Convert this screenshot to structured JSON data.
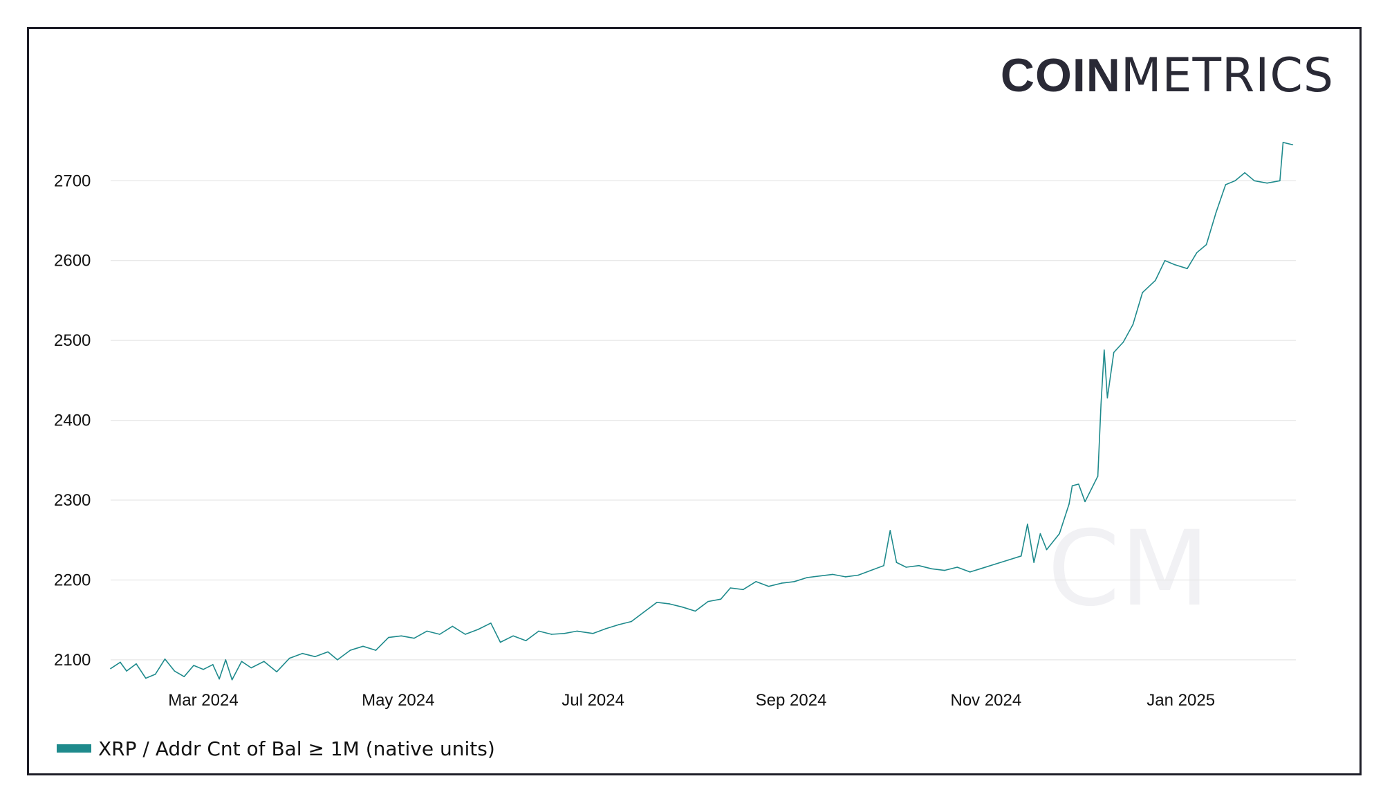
{
  "logo": {
    "bold": "COIN",
    "light": "METRICS",
    "watermark": "CM"
  },
  "colors": {
    "series": "#1e8a8c",
    "grid": "#e6e6e6",
    "frame": "#1d1d27",
    "logo": "#2a2a36",
    "watermark": "#f1f1f4"
  },
  "chart_data": {
    "type": "line",
    "title": "",
    "xlabel": "",
    "ylabel": "",
    "x_range": [
      "2024-02-01",
      "2025-02-06"
    ],
    "ylim": [
      2080,
      2760
    ],
    "grid": true,
    "legend_position": "bottom-left",
    "y_ticks": [
      {
        "value": 2100,
        "label": "2100"
      },
      {
        "value": 2200,
        "label": "2200"
      },
      {
        "value": 2300,
        "label": "2300"
      },
      {
        "value": 2400,
        "label": "2400"
      },
      {
        "value": 2500,
        "label": "2500"
      },
      {
        "value": 2600,
        "label": "2600"
      },
      {
        "value": 2700,
        "label": "2700"
      }
    ],
    "x_ticks": [
      {
        "date": "2024-03-01",
        "label": "Mar 2024"
      },
      {
        "date": "2024-05-01",
        "label": "May 2024"
      },
      {
        "date": "2024-07-01",
        "label": "Jul 2024"
      },
      {
        "date": "2024-09-01",
        "label": "Sep 2024"
      },
      {
        "date": "2024-11-01",
        "label": "Nov 2024"
      },
      {
        "date": "2025-01-01",
        "label": "Jan 2025"
      }
    ],
    "series": [
      {
        "name": "XRP / Addr Cnt of Bal ≥ 1M (native units)",
        "color": "#1e8a8c",
        "points": [
          [
            "2024-02-01",
            2089
          ],
          [
            "2024-02-04",
            2097
          ],
          [
            "2024-02-06",
            2086
          ],
          [
            "2024-02-09",
            2095
          ],
          [
            "2024-02-12",
            2077
          ],
          [
            "2024-02-15",
            2082
          ],
          [
            "2024-02-18",
            2101
          ],
          [
            "2024-02-21",
            2086
          ],
          [
            "2024-02-24",
            2079
          ],
          [
            "2024-02-27",
            2093
          ],
          [
            "2024-03-01",
            2088
          ],
          [
            "2024-03-04",
            2094
          ],
          [
            "2024-03-06",
            2076
          ],
          [
            "2024-03-08",
            2100
          ],
          [
            "2024-03-10",
            2075
          ],
          [
            "2024-03-13",
            2098
          ],
          [
            "2024-03-16",
            2090
          ],
          [
            "2024-03-20",
            2098
          ],
          [
            "2024-03-24",
            2085
          ],
          [
            "2024-03-28",
            2102
          ],
          [
            "2024-04-01",
            2108
          ],
          [
            "2024-04-05",
            2104
          ],
          [
            "2024-04-09",
            2110
          ],
          [
            "2024-04-12",
            2100
          ],
          [
            "2024-04-16",
            2112
          ],
          [
            "2024-04-20",
            2117
          ],
          [
            "2024-04-24",
            2112
          ],
          [
            "2024-04-28",
            2128
          ],
          [
            "2024-05-02",
            2130
          ],
          [
            "2024-05-06",
            2127
          ],
          [
            "2024-05-10",
            2136
          ],
          [
            "2024-05-14",
            2132
          ],
          [
            "2024-05-18",
            2142
          ],
          [
            "2024-05-22",
            2132
          ],
          [
            "2024-05-26",
            2138
          ],
          [
            "2024-05-30",
            2146
          ],
          [
            "2024-06-02",
            2122
          ],
          [
            "2024-06-06",
            2130
          ],
          [
            "2024-06-10",
            2124
          ],
          [
            "2024-06-14",
            2136
          ],
          [
            "2024-06-18",
            2132
          ],
          [
            "2024-06-22",
            2133
          ],
          [
            "2024-06-26",
            2136
          ],
          [
            "2024-07-01",
            2133
          ],
          [
            "2024-07-05",
            2139
          ],
          [
            "2024-07-09",
            2144
          ],
          [
            "2024-07-13",
            2148
          ],
          [
            "2024-07-17",
            2160
          ],
          [
            "2024-07-21",
            2172
          ],
          [
            "2024-07-25",
            2170
          ],
          [
            "2024-07-29",
            2166
          ],
          [
            "2024-08-02",
            2161
          ],
          [
            "2024-08-06",
            2173
          ],
          [
            "2024-08-10",
            2176
          ],
          [
            "2024-08-13",
            2190
          ],
          [
            "2024-08-17",
            2188
          ],
          [
            "2024-08-21",
            2198
          ],
          [
            "2024-08-25",
            2192
          ],
          [
            "2024-08-29",
            2196
          ],
          [
            "2024-09-02",
            2198
          ],
          [
            "2024-09-06",
            2203
          ],
          [
            "2024-09-10",
            2205
          ],
          [
            "2024-09-14",
            2207
          ],
          [
            "2024-09-18",
            2204
          ],
          [
            "2024-09-22",
            2206
          ],
          [
            "2024-09-26",
            2212
          ],
          [
            "2024-09-30",
            2218
          ],
          [
            "2024-10-02",
            2262
          ],
          [
            "2024-10-04",
            2222
          ],
          [
            "2024-10-07",
            2216
          ],
          [
            "2024-10-11",
            2218
          ],
          [
            "2024-10-15",
            2214
          ],
          [
            "2024-10-19",
            2212
          ],
          [
            "2024-10-23",
            2216
          ],
          [
            "2024-10-27",
            2210
          ],
          [
            "2024-10-31",
            2215
          ],
          [
            "2024-11-04",
            2220
          ],
          [
            "2024-11-08",
            2225
          ],
          [
            "2024-11-12",
            2230
          ],
          [
            "2024-11-14",
            2270
          ],
          [
            "2024-11-16",
            2222
          ],
          [
            "2024-11-18",
            2258
          ],
          [
            "2024-11-20",
            2238
          ],
          [
            "2024-11-24",
            2258
          ],
          [
            "2024-11-27",
            2295
          ],
          [
            "2024-11-28",
            2318
          ],
          [
            "2024-11-30",
            2320
          ],
          [
            "2024-12-02",
            2298
          ],
          [
            "2024-12-06",
            2330
          ],
          [
            "2024-12-07",
            2420
          ],
          [
            "2024-12-08",
            2488
          ],
          [
            "2024-12-09",
            2428
          ],
          [
            "2024-12-11",
            2485
          ],
          [
            "2024-12-14",
            2498
          ],
          [
            "2024-12-17",
            2520
          ],
          [
            "2024-12-20",
            2560
          ],
          [
            "2024-12-24",
            2575
          ],
          [
            "2024-12-27",
            2600
          ],
          [
            "2024-12-30",
            2595
          ],
          [
            "2025-01-03",
            2590
          ],
          [
            "2025-01-06",
            2610
          ],
          [
            "2025-01-09",
            2620
          ],
          [
            "2025-01-12",
            2660
          ],
          [
            "2025-01-15",
            2695
          ],
          [
            "2025-01-18",
            2700
          ],
          [
            "2025-01-21",
            2710
          ],
          [
            "2025-01-24",
            2700
          ],
          [
            "2025-01-28",
            2697
          ],
          [
            "2025-02-01",
            2700
          ],
          [
            "2025-02-02",
            2748
          ],
          [
            "2025-02-05",
            2745
          ]
        ]
      }
    ]
  }
}
